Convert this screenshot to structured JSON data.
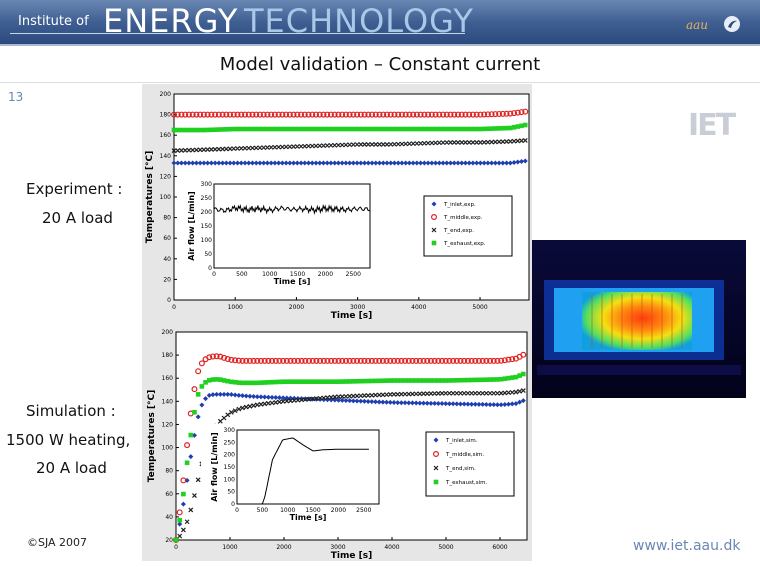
{
  "banner": {
    "institute": "Institute of",
    "energy": "ENERGY",
    "technology": "TECHNOLOGY",
    "aau": "aau"
  },
  "title": "Model validation – Constant current",
  "page_number": "13",
  "labels": {
    "experiment_line1": "Experiment :",
    "experiment_line2": "20 A load",
    "simulation_line1": "Simulation :",
    "simulation_line2": "1500 W heating,",
    "simulation_line3": "20 A load"
  },
  "footer": {
    "copyright": "©SJA 2007",
    "url": "www.iet.aau.dk"
  },
  "colors": {
    "inlet": "#1f3fb0",
    "middle": "#e02020",
    "end": "#202020",
    "exhaust": "#20d020",
    "accent": "#6a87b3"
  },
  "chart_data": [
    {
      "name": "experiment",
      "type": "scatter",
      "xlabel": "Time [s]",
      "ylabel": "Temperatures [°C]",
      "xlim": [
        0,
        5800
      ],
      "ylim": [
        0,
        200
      ],
      "x_ticks": [
        0,
        1000,
        2000,
        3000,
        4000,
        5000
      ],
      "y_ticks": [
        0,
        20,
        40,
        60,
        80,
        100,
        120,
        140,
        160,
        180,
        200
      ],
      "x": [
        0,
        500,
        1000,
        1500,
        2000,
        2500,
        3000,
        3500,
        4000,
        4500,
        5000,
        5500,
        5750
      ],
      "series": [
        {
          "name": "T_inlet,exp.",
          "values": [
            133,
            133,
            133,
            133,
            133,
            133,
            133,
            133,
            133,
            133,
            133,
            133,
            135
          ]
        },
        {
          "name": "T_middle,exp.",
          "values": [
            180,
            180,
            180,
            180,
            180,
            180,
            180,
            180,
            180,
            180,
            180,
            181,
            183
          ]
        },
        {
          "name": "T_end,exp.",
          "values": [
            145,
            146,
            147,
            148,
            149,
            150,
            151,
            151,
            152,
            153,
            153,
            154,
            155
          ]
        },
        {
          "name": "T_exhaust,exp.",
          "values": [
            165,
            165,
            166,
            166,
            166,
            166,
            166,
            166,
            166,
            166,
            166,
            167,
            170
          ]
        }
      ],
      "inset": {
        "xlabel": "Time [s]",
        "ylabel": "Air flow [L/min]",
        "xlim": [
          0,
          2800
        ],
        "ylim": [
          0,
          300
        ],
        "x_ticks": [
          0,
          500,
          1000,
          1500,
          2000,
          2500
        ],
        "y_ticks": [
          0,
          50,
          100,
          150,
          200,
          250,
          300
        ],
        "x": [
          0,
          200,
          400,
          600,
          800,
          1000,
          1200,
          1400,
          1600,
          1800,
          2000,
          2200,
          2400,
          2600,
          2800
        ],
        "values": [
          210,
          205,
          215,
          208,
          212,
          206,
          214,
          209,
          211,
          207,
          213,
          210,
          208,
          212,
          209
        ]
      }
    },
    {
      "name": "simulation",
      "type": "scatter",
      "xlabel": "Time [s]",
      "ylabel": "Temperatures [°C]",
      "xlim": [
        0,
        6500
      ],
      "ylim": [
        20,
        200
      ],
      "x_ticks": [
        0,
        1000,
        2000,
        3000,
        4000,
        5000,
        6000
      ],
      "y_ticks": [
        20,
        40,
        60,
        80,
        100,
        120,
        140,
        160,
        180,
        200
      ],
      "x": [
        0,
        100,
        200,
        300,
        400,
        500,
        600,
        700,
        800,
        1000,
        1200,
        1500,
        2000,
        2500,
        3000,
        4000,
        5000,
        6000,
        6300,
        6500
      ],
      "series": [
        {
          "name": "T_inlet,sim.",
          "values": [
            20,
            40,
            70,
            100,
            125,
            140,
            145,
            146,
            146,
            146,
            145,
            144,
            143,
            142,
            141,
            139,
            138,
            137,
            138,
            142
          ]
        },
        {
          "name": "T_middle,sim.",
          "values": [
            20,
            55,
            100,
            140,
            165,
            175,
            178,
            179,
            179,
            176,
            175,
            175,
            175,
            175,
            175,
            175,
            175,
            175,
            177,
            182
          ]
        },
        {
          "name": "T_end,sim.",
          "values": [
            20,
            25,
            35,
            50,
            70,
            90,
            105,
            115,
            122,
            130,
            134,
            137,
            140,
            142,
            144,
            146,
            147,
            147,
            148,
            150
          ]
        },
        {
          "name": "T_exhaust,sim.",
          "values": [
            20,
            45,
            85,
            120,
            145,
            155,
            158,
            159,
            159,
            157,
            156,
            156,
            157,
            157,
            157,
            158,
            158,
            159,
            161,
            165
          ]
        }
      ],
      "inset": {
        "xlabel": "Time [s]",
        "ylabel": "Air flow [L/min]",
        "xlim": [
          0,
          2800
        ],
        "ylim": [
          0,
          300
        ],
        "x_ticks": [
          0,
          500,
          1000,
          1500,
          2000,
          2500
        ],
        "y_ticks": [
          0,
          50,
          100,
          150,
          200,
          250,
          300
        ],
        "x": [
          0,
          500,
          550,
          700,
          900,
          1100,
          1300,
          1500,
          1700,
          2000,
          2300,
          2600
        ],
        "values": [
          0,
          0,
          30,
          180,
          260,
          268,
          240,
          215,
          220,
          222,
          222,
          222
        ]
      }
    }
  ]
}
